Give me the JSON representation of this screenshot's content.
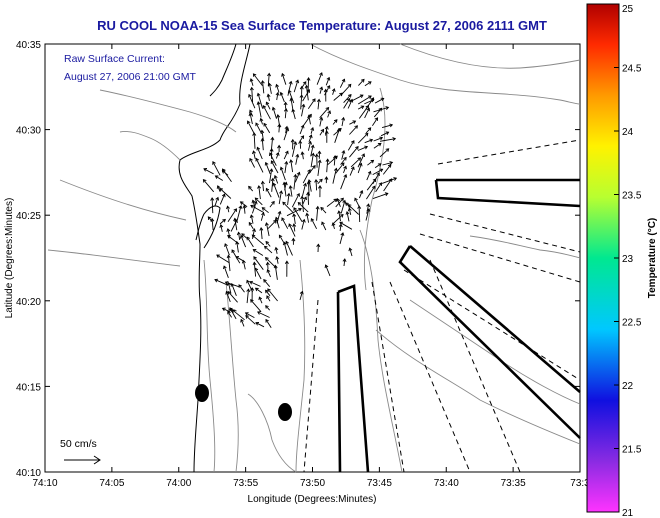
{
  "chart_data": {
    "type": "vector-field-map",
    "title": "RU COOL  NOAA-15  Sea Surface Temperature:  August 27, 2006 2111 GMT",
    "annotation": {
      "line1": "Raw Surface Current:",
      "line2": "August 27, 2006 21:00 GMT"
    },
    "xlabel": "Longitude (Degrees:Minutes)",
    "ylabel": "Latitude (Degrees:Minutes)",
    "x_ticks": [
      "74:10",
      "74:05",
      "74:00",
      "73:55",
      "73:50",
      "73:45",
      "73:40",
      "73:35",
      "73:3"
    ],
    "y_ticks": [
      "40:35",
      "40:30",
      "40:25",
      "40:20",
      "40:15",
      "40:10"
    ],
    "xlim_minutes_west": [
      70,
      30
    ],
    "ylim_minutes_north": [
      10,
      35
    ],
    "scale_label": "50 cm/s",
    "colorbar": {
      "label": "Temperature (°C)",
      "ticks": [
        "25",
        "24.5",
        "24",
        "23.5",
        "23",
        "22.5",
        "22",
        "21.5",
        "21"
      ],
      "range": [
        21,
        25
      ]
    },
    "buoys_lonlat_minutes": [
      [
        58.9,
        14.7
      ],
      [
        52.3,
        13.5
      ]
    ],
    "current_vectors_summary": "approx. 600 raw surface current vectors, predominantly directed toward the north-east / north-west across the Raritan Bay and New York Bight apex",
    "colors": {
      "title": "#1a1aa0",
      "land": "#ffffff",
      "vectors": "#000000",
      "contours": "#888888"
    }
  }
}
